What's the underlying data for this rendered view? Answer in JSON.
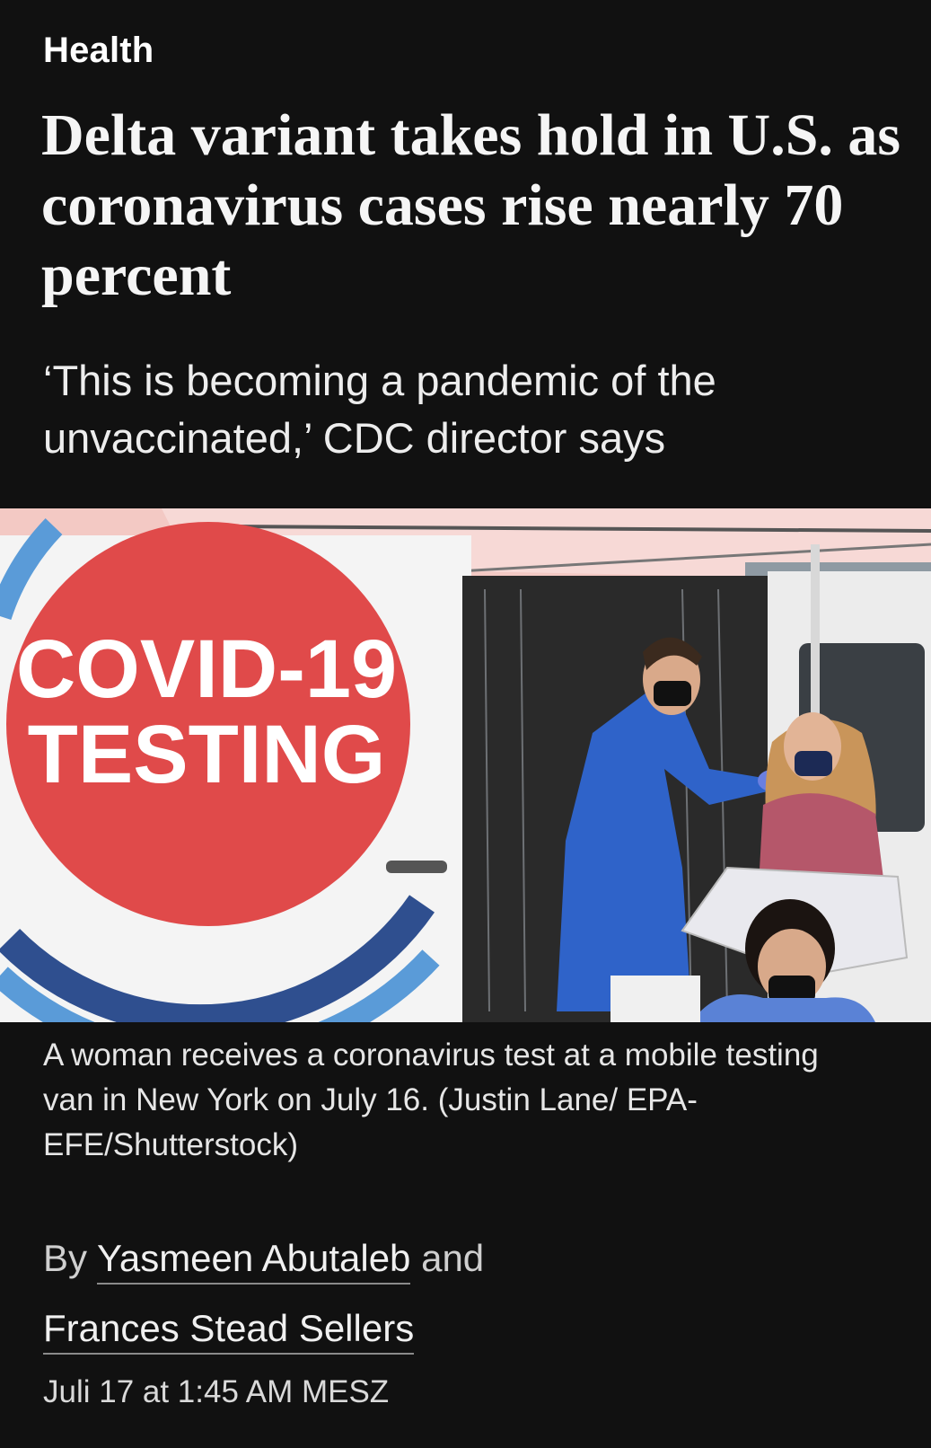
{
  "section": {
    "label": "Health"
  },
  "article": {
    "headline": "Delta variant takes hold in U.S. as coronavirus cases rise nearly 70 percent",
    "subheadline": "‘This is becoming a pandemic of the unvaccinated,’ CDC director says",
    "photo": {
      "sign_line1": "COVID-19",
      "sign_line2": "TESTING"
    },
    "caption": "A woman receives a coronavirus test at a mobile testing van in New York on July 16. (Justin Lane/ EPA-EFE/Shutterstock)",
    "byline": {
      "prefix": "By",
      "author1": "Yasmeen Abutaleb",
      "conjunction": "and",
      "author2": "Frances Stead Sellers"
    },
    "timestamp": "Juli 17 at 1:45 AM MESZ"
  },
  "colors": {
    "background": "#111111",
    "text": "#f5f5f5",
    "sign_red": "#e04a4a",
    "scrub_blue": "#2f63c9"
  }
}
